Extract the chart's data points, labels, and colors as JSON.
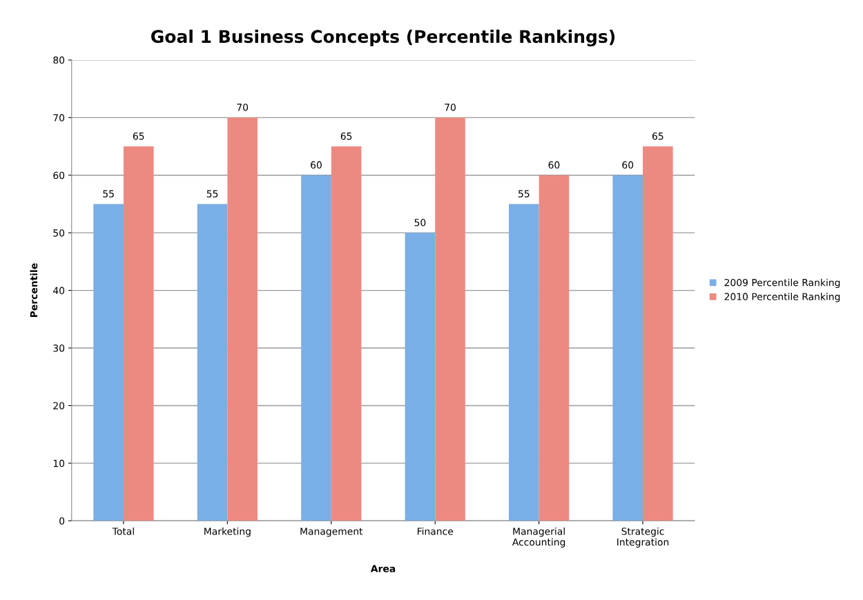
{
  "chart_data": {
    "type": "bar",
    "title": "Goal 1 Business Concepts (Percentile Rankings)",
    "xlabel": "Area",
    "ylabel": "Percentile",
    "categories": [
      "Total",
      "Marketing",
      "Management",
      "Finance",
      "Managerial\nAccounting",
      "Strategic\nIntegration"
    ],
    "series": [
      {
        "name": "2009 Percentile Ranking",
        "color": "#7aaee6",
        "values": [
          55,
          55,
          60,
          50,
          55,
          60
        ]
      },
      {
        "name": "2010 Percentile Ranking",
        "color": "#ec8a82",
        "values": [
          65,
          70,
          65,
          70,
          60,
          65
        ]
      }
    ],
    "ylim": [
      0,
      80
    ],
    "yticks": [
      0,
      10,
      20,
      30,
      40,
      50,
      60,
      70,
      80
    ],
    "grid": "y",
    "legend": "right",
    "data_labels": true
  }
}
